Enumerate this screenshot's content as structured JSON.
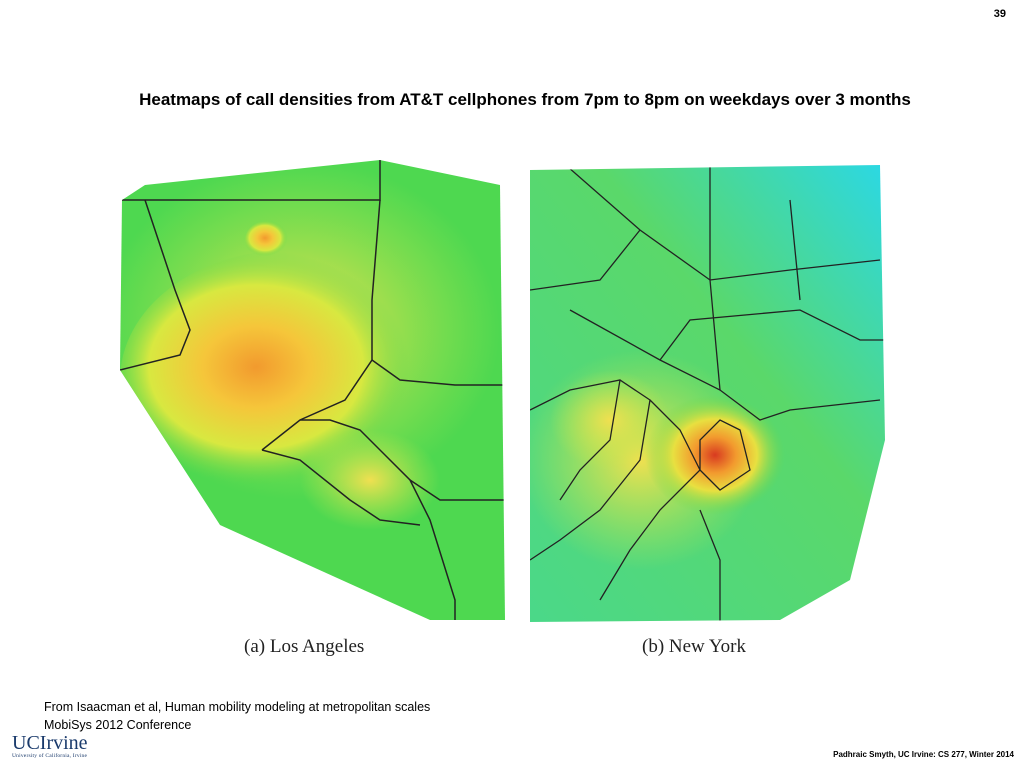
{
  "slide_number": "39",
  "title": "Heatmaps of call densities from AT&T cellphones from 7pm to 8pm on weekdays over 3 months",
  "figures": [
    {
      "caption": "(a) Los Angeles"
    },
    {
      "caption": "(b) New York"
    }
  ],
  "source": [
    "From Isaacman et al, Human mobility modeling at metropolitan scales",
    "MobiSys 2012 Conference"
  ],
  "logo": {
    "name": "UCIrvine",
    "subtitle": "University of California, Irvine"
  },
  "footer": "Padhraic Smyth, UC Irvine: CS 277, Winter 2014"
}
